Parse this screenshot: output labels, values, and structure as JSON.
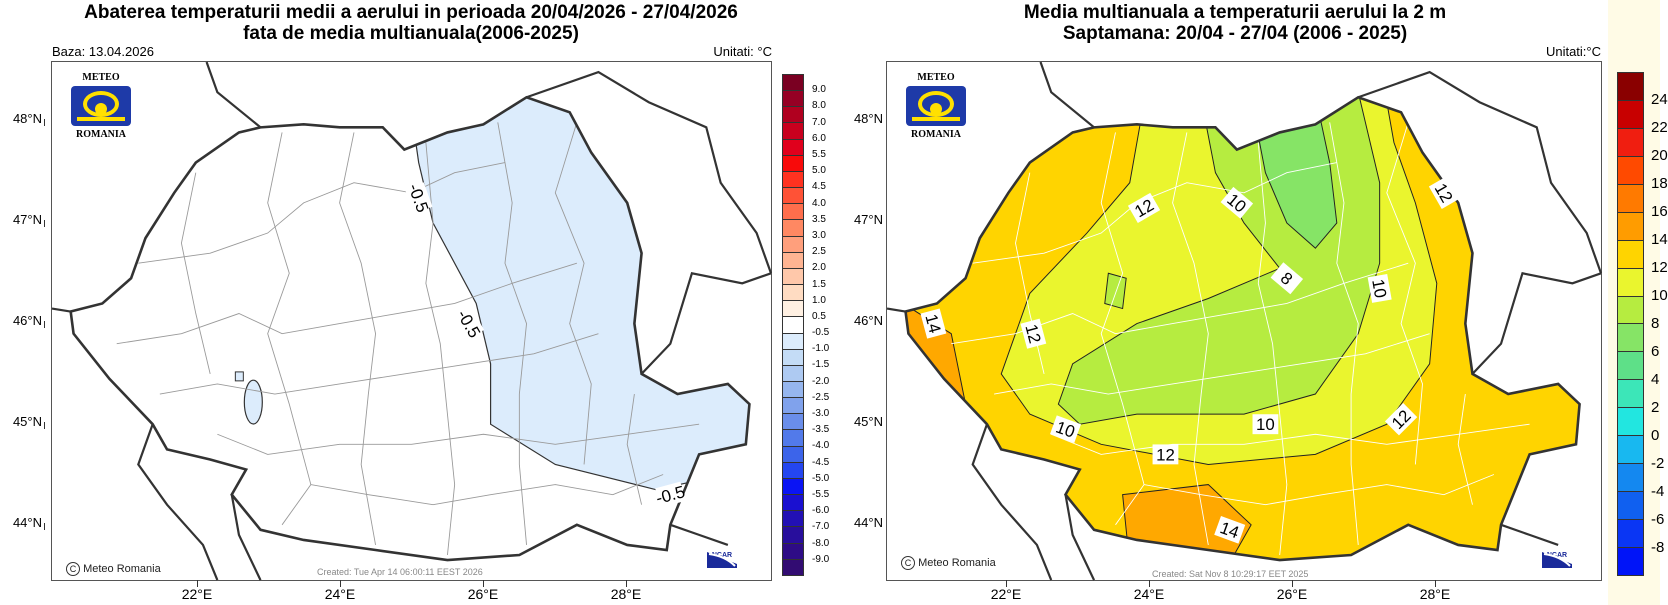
{
  "left": {
    "title_line1": "Abaterea temperaturii medii a aerului in perioada 20/04/2026 - 27/04/2026",
    "title_line2": "fata de media multianuala(2006-2025)",
    "base_label": "Baza: 13.04.2026",
    "units_label": "Unitati: °C",
    "credit": "Meteo Romania",
    "created": "Created: Tue Apr 14 06:00:11 EEST 2026",
    "contour_labels": [
      "-0.5",
      "-0.5",
      "-0.5"
    ],
    "colorbar": {
      "labels": [
        "9.0",
        "8.0",
        "7.0",
        "6.0",
        "5.5",
        "5.0",
        "4.5",
        "4.0",
        "3.5",
        "3.0",
        "2.5",
        "2.0",
        "1.5",
        "1.0",
        "0.5",
        "-0.5",
        "-1.0",
        "-1.5",
        "-2.0",
        "-2.5",
        "-3.0",
        "-3.5",
        "-4.0",
        "-4.5",
        "-5.0",
        "-5.5",
        "-6.0",
        "-7.0",
        "-8.0",
        "-9.0"
      ],
      "colors": [
        "#7a0022",
        "#960024",
        "#b0001f",
        "#c8001e",
        "#e0001c",
        "#f80a0a",
        "#ff3220",
        "#ff5236",
        "#ff6e4c",
        "#ff8862",
        "#ff9f7c",
        "#ffb492",
        "#ffc8aa",
        "#ffdcc2",
        "#fff0e2",
        "#ffffff",
        "#dcecfc",
        "#c4dcf6",
        "#aecaf2",
        "#96b6ee",
        "#80a2ec",
        "#6a8eea",
        "#527aea",
        "#3c64ea",
        "#2446f0",
        "#0a14f4",
        "#1a10d0",
        "#2210b4",
        "#280e9c",
        "#2e0c86",
        "#320c72"
      ]
    },
    "fill_color": "#dcecfc"
  },
  "right": {
    "title_line1": "Media multianuala a temperaturii aerului la 2 m",
    "title_line2": "Saptamana: 20/04 - 27/04 (2006 - 2025)",
    "units_label": "Unitati:°C",
    "credit": "Meteo Romania",
    "created": "Created: Sat Nov  8 10:29:17 EET 2025",
    "contour_labels": [
      "14",
      "12",
      "12",
      "10",
      "8",
      "10",
      "12",
      "10",
      "10",
      "12",
      "12",
      "14"
    ],
    "colorbar": {
      "labels": [
        "24",
        "22",
        "20",
        "18",
        "16",
        "14",
        "12",
        "10",
        "8",
        "6",
        "4",
        "2",
        "0",
        "-2",
        "-4",
        "-6",
        "-8"
      ],
      "colors": [
        "#8a0000",
        "#c80000",
        "#f01e10",
        "#ff4a00",
        "#ff7a00",
        "#ff9c00",
        "#ffd400",
        "#eaf52e",
        "#b6ec40",
        "#86e466",
        "#5ee088",
        "#3ce6b8",
        "#22e6e0",
        "#18b8f0",
        "#1488f0",
        "#1060f0",
        "#0a36f4",
        "#0014f8"
      ]
    },
    "band_colors": {
      "b6_8": "#86e466",
      "b8_10": "#b6ec40",
      "b10_12": "#eaf52e",
      "b12_14": "#ffd400",
      "b14_16": "#ffa800"
    }
  },
  "axes": {
    "lat_labels": [
      "48°N",
      "47°N",
      "46°N",
      "45°N",
      "44°N"
    ],
    "lon_labels": [
      "22°E",
      "24°E",
      "26°E",
      "28°E"
    ]
  },
  "logo": {
    "top_text": "METEO",
    "bottom_text": "ROMANIA"
  },
  "ncar_text": "NCAR"
}
